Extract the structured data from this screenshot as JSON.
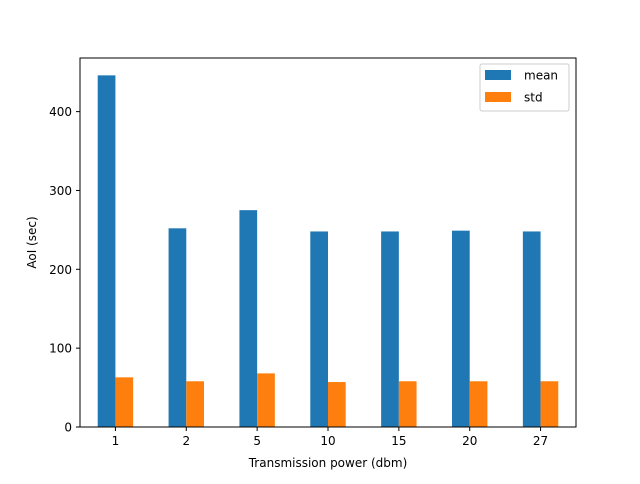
{
  "chart_data": {
    "type": "bar",
    "categories": [
      "1",
      "2",
      "5",
      "10",
      "15",
      "20",
      "27"
    ],
    "series": [
      {
        "name": "mean",
        "color": "#1f77b4",
        "values": [
          446,
          252,
          275,
          248,
          248,
          249,
          248
        ]
      },
      {
        "name": "std",
        "color": "#ff7f0e",
        "values": [
          63,
          58,
          68,
          57,
          58,
          58,
          58
        ]
      }
    ],
    "xlabel": "Transmission power (dbm)",
    "ylabel": "AoI (sec)",
    "ylim": [
      0,
      468
    ],
    "yticks": [
      0,
      100,
      200,
      300,
      400
    ],
    "grid": false,
    "legend_position": "top-right"
  }
}
